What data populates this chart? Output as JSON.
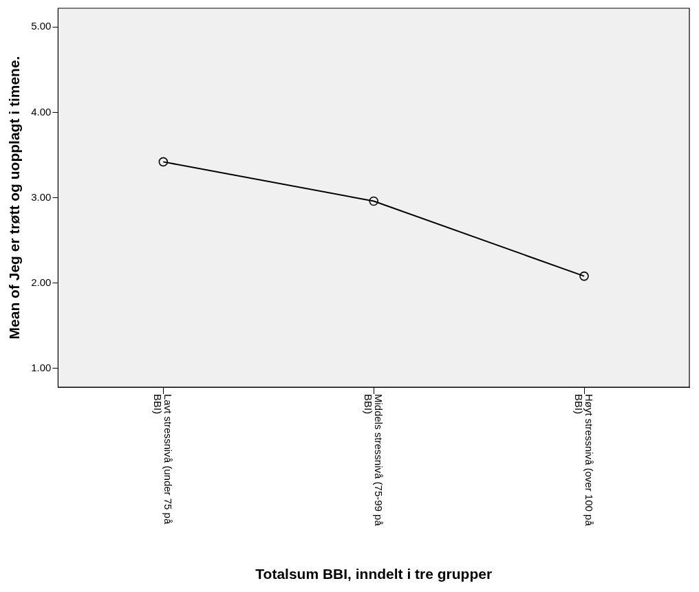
{
  "chart_data": {
    "type": "line",
    "xlabel": "Totalsum BBI, inndelt i tre grupper",
    "ylabel": "Mean of Jeg er trøtt og uopplagt i timene.",
    "categories": [
      "Lavt stressnivå (under 75 på BBI)",
      "Middels stressnivå (75-99 på BBI)",
      "Høyt stressnivå (over 100 på BBI)"
    ],
    "series": [
      {
        "color": "#000000",
        "values": [
          3.42,
          2.96,
          2.08
        ]
      }
    ],
    "ylim": [
      0.78,
      5.22
    ],
    "yticks": [
      {
        "value": 1,
        "label": "1.00"
      },
      {
        "value": 2,
        "label": "2.00"
      },
      {
        "value": 3,
        "label": "3.00"
      },
      {
        "value": 4,
        "label": "4.00"
      },
      {
        "value": 5,
        "label": "5.00"
      }
    ],
    "grid": false,
    "legend": false,
    "marker": "circle",
    "line_style": "solid"
  }
}
